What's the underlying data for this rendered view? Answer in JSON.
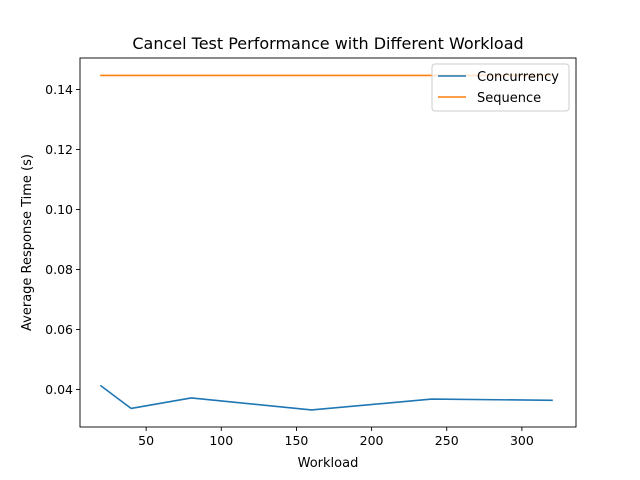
{
  "chart_data": {
    "type": "line",
    "title": "Cancel Test Performance with Different Workload",
    "xlabel": "Workload",
    "ylabel": "Average Response Time (s)",
    "xlim": [
      6,
      336
    ],
    "ylim": [
      0.0275,
      0.1505
    ],
    "xticks": [
      50,
      100,
      150,
      200,
      250,
      300
    ],
    "yticks": [
      0.04,
      0.06,
      0.08,
      0.1,
      0.12,
      0.14
    ],
    "ytick_labels": [
      "0.04",
      "0.06",
      "0.08",
      "0.10",
      "0.12",
      "0.14"
    ],
    "legend_placement": "top-right",
    "grid": false,
    "series": [
      {
        "name": "Concurrency",
        "color": "#1f77b4",
        "x": [
          20,
          40,
          80,
          160,
          240,
          320
        ],
        "y": [
          0.0412,
          0.0337,
          0.0372,
          0.0332,
          0.0368,
          0.0364
        ]
      },
      {
        "name": "Sequence",
        "color": "#ff7f0e",
        "x": [
          20,
          40,
          80,
          160,
          240,
          320
        ],
        "y": [
          0.1447,
          0.1447,
          0.1447,
          0.1447,
          0.1447,
          0.1447
        ]
      }
    ]
  }
}
